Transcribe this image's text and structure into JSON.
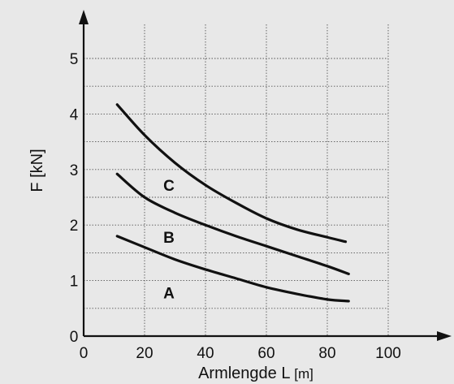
{
  "chart_data": {
    "type": "line",
    "title": "",
    "xlabel": "Armlengde L",
    "xlabel_unit": "[m]",
    "ylabel": "F [kN]",
    "xlim": [
      0,
      120
    ],
    "ylim": [
      0,
      5.5
    ],
    "x_ticks": [
      "0",
      "20",
      "40",
      "60",
      "80",
      "100"
    ],
    "y_ticks": [
      "0",
      "1",
      "2",
      "3",
      "4",
      "5"
    ],
    "grid": true,
    "series": [
      {
        "name": "A",
        "x": [
          11,
          20,
          30,
          40,
          50,
          60,
          70,
          80,
          87
        ],
        "y": [
          1.8,
          1.6,
          1.38,
          1.2,
          1.04,
          0.88,
          0.76,
          0.66,
          0.63
        ]
      },
      {
        "name": "B",
        "x": [
          11,
          20,
          30,
          40,
          50,
          60,
          70,
          80,
          87
        ],
        "y": [
          2.92,
          2.5,
          2.22,
          2.0,
          1.8,
          1.62,
          1.44,
          1.26,
          1.12
        ]
      },
      {
        "name": "C",
        "x": [
          11,
          20,
          30,
          40,
          50,
          60,
          70,
          80,
          86
        ],
        "y": [
          4.17,
          3.62,
          3.12,
          2.72,
          2.4,
          2.12,
          1.92,
          1.78,
          1.7
        ]
      }
    ]
  }
}
